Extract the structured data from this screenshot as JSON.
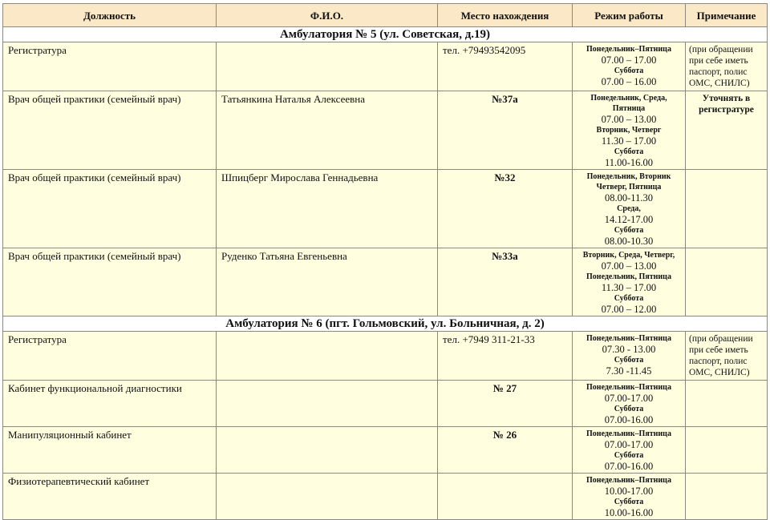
{
  "headers": [
    "Должность",
    "Ф.И.О.",
    "Место нахождения",
    "Режим работы",
    "Примечание"
  ],
  "sections": [
    {
      "title": "Амбулатория № 5 (ул. Советская, д.19)",
      "rows": [
        {
          "position": "Регистратура",
          "name": "",
          "location": "тел. +79493542095",
          "location_bold": false,
          "schedule": [
            {
              "k": "lbl",
              "t": "Понедельник–Пятница"
            },
            {
              "k": "tm",
              "t": "07.00 – 17.00"
            },
            {
              "k": "lbl",
              "t": "Суббота"
            },
            {
              "k": "tm",
              "t": "07.00 – 16.00"
            }
          ],
          "note": "(при обращении при себе иметь паспорт, полис ОМС, СНИЛС)",
          "note_bold": false
        },
        {
          "position": "Врач общей практики (семейный врач)",
          "name": "Татьянкина Наталья Алексеевна",
          "location": "№37а",
          "location_bold": true,
          "schedule": [
            {
              "k": "lbl",
              "t": "Понедельник, Среда, Пятница"
            },
            {
              "k": "tm",
              "t": "07.00 – 13.00"
            },
            {
              "k": "lbl",
              "t": "Вторник, Четверг"
            },
            {
              "k": "tm",
              "t": "11.30 – 17.00"
            },
            {
              "k": "lbl",
              "t": "Суббота"
            },
            {
              "k": "tm",
              "t": "11.00-16.00"
            }
          ],
          "note": "Уточнять в регистратуре",
          "note_bold": true
        },
        {
          "position": "Врач общей практики (семейный врач)",
          "name": "Шпицберг Мирослава Геннадьевна",
          "location": "№32",
          "location_bold": true,
          "schedule": [
            {
              "k": "lbl",
              "t": "Понедельник, Вторник Четверг, Пятница"
            },
            {
              "k": "tm",
              "t": "08.00-11.30"
            },
            {
              "k": "lbl",
              "t": "Среда,"
            },
            {
              "k": "tm",
              "t": "14.12-17.00"
            },
            {
              "k": "lbl",
              "t": "Суббота"
            },
            {
              "k": "tm",
              "t": "08.00-10.30"
            }
          ],
          "note": "",
          "note_bold": false
        },
        {
          "position": "Врач общей практики (семейный врач)",
          "name": "Руденко Татьяна Евгеньевна",
          "location": "№33а",
          "location_bold": true,
          "schedule": [
            {
              "k": "lbl",
              "t": "Вторник, Среда, Четверг,"
            },
            {
              "k": "tm",
              "t": "07.00 – 13.00"
            },
            {
              "k": "lbl",
              "t": "Понедельник, Пятница"
            },
            {
              "k": "tm",
              "t": "11.30 – 17.00"
            },
            {
              "k": "lbl",
              "t": "Суббота"
            },
            {
              "k": "tm",
              "t": "07.00 – 12.00"
            }
          ],
          "note": "",
          "note_bold": false
        }
      ]
    },
    {
      "title": "Амбулатория № 6 (пгт. Гольмовский, ул. Больничная, д. 2)",
      "rows": [
        {
          "position": "Регистратура",
          "name": "",
          "location": "тел. +7949 311-21-33",
          "location_bold": false,
          "schedule": [
            {
              "k": "lbl",
              "t": "Понедельник–Пятница"
            },
            {
              "k": "tm",
              "t": "07.30 - 13.00"
            },
            {
              "k": "lbl",
              "t": "Суббота"
            },
            {
              "k": "tm",
              "t": "7.30 -11.45"
            }
          ],
          "note": "(при обращении при себе иметь паспорт, полис ОМС, СНИЛС)",
          "note_bold": false
        },
        {
          "position": "Кабинет функциональной диагностики",
          "name": "",
          "location": "№ 27",
          "location_bold": true,
          "schedule": [
            {
              "k": "lbl",
              "t": "Понедельник–Пятница"
            },
            {
              "k": "tm",
              "t": "07.00-17.00"
            },
            {
              "k": "lbl",
              "t": "Суббота"
            },
            {
              "k": "tm",
              "t": "07.00-16.00"
            }
          ],
          "note": "",
          "note_bold": false
        },
        {
          "position": "Манипуляционный кабинет",
          "name": "",
          "location": "№ 26",
          "location_bold": true,
          "schedule": [
            {
              "k": "lbl",
              "t": "Понедельник–Пятница"
            },
            {
              "k": "tm",
              "t": "07.00-17.00"
            },
            {
              "k": "lbl",
              "t": "Суббота"
            },
            {
              "k": "tm",
              "t": "07.00-16.00"
            }
          ],
          "note": "",
          "note_bold": false
        },
        {
          "position": "Физиотерапевтический кабинет",
          "name": "",
          "location": "",
          "location_bold": false,
          "schedule": [
            {
              "k": "lbl",
              "t": "Понедельник–Пятница"
            },
            {
              "k": "tm",
              "t": "10.00-17.00"
            },
            {
              "k": "lbl",
              "t": "Суббота"
            },
            {
              "k": "tm",
              "t": "10.00-16.00"
            }
          ],
          "note": "",
          "note_bold": false
        }
      ]
    }
  ]
}
